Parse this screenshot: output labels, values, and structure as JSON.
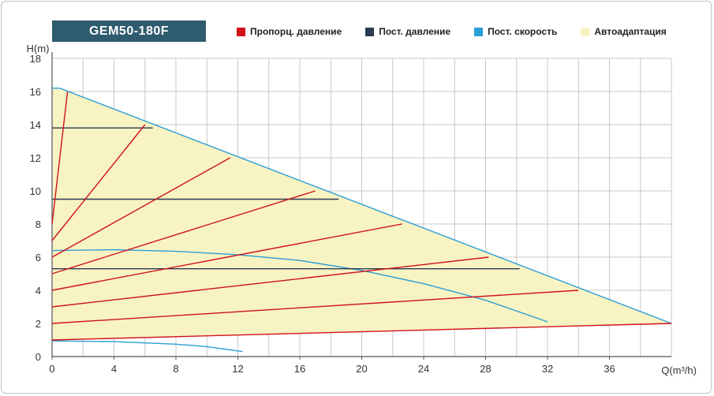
{
  "header": {
    "model": "GEM50-180F"
  },
  "colors": {
    "proportional": "#d0121b",
    "constant_pressure": "#2b3a4f",
    "constant_speed": "#2a9fd6",
    "autoadapt": "#f8f3c2",
    "grid": "#c8c8c8",
    "title_bg": "#2e5b6e"
  },
  "chart_data": {
    "type": "line",
    "ylabel": "H(m)",
    "xlabel": "Q(m³/h)",
    "xlim": [
      0,
      40
    ],
    "ylim": [
      0,
      18
    ],
    "grid": true,
    "legend_position": "top",
    "x_ticks": [
      "0",
      "4",
      "8",
      "12",
      "16",
      "20",
      "24",
      "28",
      "32",
      "36"
    ],
    "x_tick_values": [
      0,
      4,
      8,
      12,
      16,
      20,
      24,
      28,
      32,
      36
    ],
    "y_ticks": [
      "0",
      "2",
      "4",
      "6",
      "8",
      "10",
      "12",
      "14",
      "16",
      "18"
    ],
    "y_tick_values": [
      0,
      2,
      4,
      6,
      8,
      10,
      12,
      14,
      16,
      18
    ],
    "legend": [
      {
        "key": "proportional",
        "label": "Пропорц. давление"
      },
      {
        "key": "constant_pressure",
        "label": "Пост. давление"
      },
      {
        "key": "constant_speed",
        "label": "Пост. скорость"
      },
      {
        "key": "autoadapt",
        "label": "Автоадаптация"
      }
    ],
    "autoadapt_area": [
      [
        0,
        1
      ],
      [
        0,
        16.2
      ],
      [
        0.5,
        16.2
      ],
      [
        40,
        2
      ],
      [
        0,
        1
      ]
    ],
    "max_curve": [
      [
        0,
        16.2
      ],
      [
        0.5,
        16.2
      ],
      [
        40,
        2
      ]
    ],
    "proportional_lines": [
      [
        [
          0,
          8
        ],
        [
          1,
          16
        ]
      ],
      [
        [
          0,
          7
        ],
        [
          6.0,
          14
        ]
      ],
      [
        [
          0,
          6
        ],
        [
          11.5,
          12
        ]
      ],
      [
        [
          0,
          5
        ],
        [
          17.0,
          10
        ]
      ],
      [
        [
          0,
          4
        ],
        [
          22.6,
          8
        ]
      ],
      [
        [
          0,
          3
        ],
        [
          28.2,
          6
        ]
      ],
      [
        [
          0,
          2
        ],
        [
          34.0,
          4
        ]
      ],
      [
        [
          0,
          1
        ],
        [
          40,
          2
        ]
      ]
    ],
    "constant_pressure_lines": [
      [
        [
          0,
          13.8
        ],
        [
          6.5,
          13.8
        ]
      ],
      [
        [
          0,
          9.5
        ],
        [
          18.5,
          9.5
        ]
      ],
      [
        [
          0,
          5.3
        ],
        [
          30.2,
          5.3
        ]
      ]
    ],
    "constant_speed_curves": [
      [
        [
          0,
          6.4
        ],
        [
          4,
          6.45
        ],
        [
          8,
          6.35
        ],
        [
          12,
          6.15
        ],
        [
          16,
          5.8
        ],
        [
          20,
          5.2
        ],
        [
          24,
          4.4
        ],
        [
          28,
          3.4
        ],
        [
          32,
          2.1
        ]
      ],
      [
        [
          0,
          0.95
        ],
        [
          4,
          0.9
        ],
        [
          8,
          0.75
        ],
        [
          10,
          0.6
        ],
        [
          12.3,
          0.3
        ]
      ]
    ]
  }
}
